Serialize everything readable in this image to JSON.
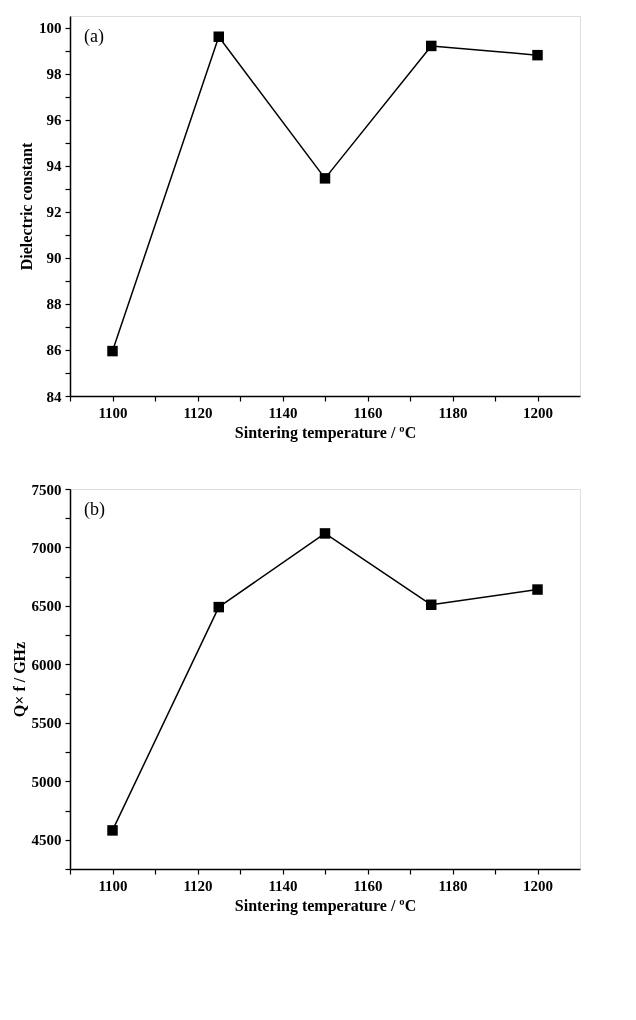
{
  "chart_data": [
    {
      "type": "line",
      "xlabel": "Sintering temperature / ºC",
      "ylabel": "Dielectric constant",
      "annotations": [
        "(a)"
      ],
      "marker": "square",
      "line_style": "solid",
      "x": [
        1100,
        1125,
        1150,
        1175,
        1200
      ],
      "series": [
        {
          "color": "#000000",
          "values": [
            85.95,
            99.6,
            93.45,
            99.2,
            98.8
          ]
        }
      ],
      "xlim": [
        1090,
        1210
      ],
      "xticks": [
        {
          "value": 1090,
          "label": null
        },
        1100,
        {
          "value": 1110,
          "label": null
        },
        1120,
        {
          "value": 1130,
          "label": null
        },
        1140,
        {
          "value": 1150,
          "label": null
        },
        1160,
        {
          "value": 1170,
          "label": null
        },
        1180,
        {
          "value": 1190,
          "label": null
        },
        1200
      ],
      "ylim": [
        84,
        100.5
      ],
      "yticks": [
        84,
        {
          "value": 85,
          "label": null
        },
        86,
        {
          "value": 87,
          "label": null
        },
        88,
        {
          "value": 89,
          "label": null
        },
        90,
        {
          "value": 91,
          "label": null
        },
        92,
        {
          "value": 93,
          "label": null
        },
        94,
        {
          "value": 95,
          "label": null
        },
        96,
        {
          "value": 97,
          "label": null
        },
        98,
        {
          "value": 99,
          "label": null
        },
        100
      ]
    },
    {
      "type": "line",
      "xlabel": "Sintering temperature / ºC",
      "ylabel": "Q× f / GHz",
      "annotations": [
        "(b)"
      ],
      "marker": "square",
      "line_style": "solid",
      "x": [
        1100,
        1125,
        1150,
        1175,
        1200
      ],
      "series": [
        {
          "color": "#000000",
          "values": [
            4580,
            6490,
            7120,
            6510,
            6640
          ]
        }
      ],
      "xlim": [
        1090,
        1210
      ],
      "xticks": [
        {
          "value": 1090,
          "label": null
        },
        1100,
        {
          "value": 1110,
          "label": null
        },
        1120,
        {
          "value": 1130,
          "label": null
        },
        1140,
        {
          "value": 1150,
          "label": null
        },
        1160,
        {
          "value": 1170,
          "label": null
        },
        1180,
        {
          "value": 1190,
          "label": null
        },
        1200
      ],
      "ylim": [
        4250,
        7500
      ],
      "yticks": [
        {
          "value": 4250,
          "label": null
        },
        4500,
        {
          "value": 4750,
          "label": null
        },
        5000,
        {
          "value": 5250,
          "label": null
        },
        5500,
        {
          "value": 5750,
          "label": null
        },
        6000,
        {
          "value": 6250,
          "label": null
        },
        6500,
        {
          "value": 6750,
          "label": null
        },
        7000,
        {
          "value": 7250,
          "label": null
        },
        7500
      ]
    }
  ]
}
